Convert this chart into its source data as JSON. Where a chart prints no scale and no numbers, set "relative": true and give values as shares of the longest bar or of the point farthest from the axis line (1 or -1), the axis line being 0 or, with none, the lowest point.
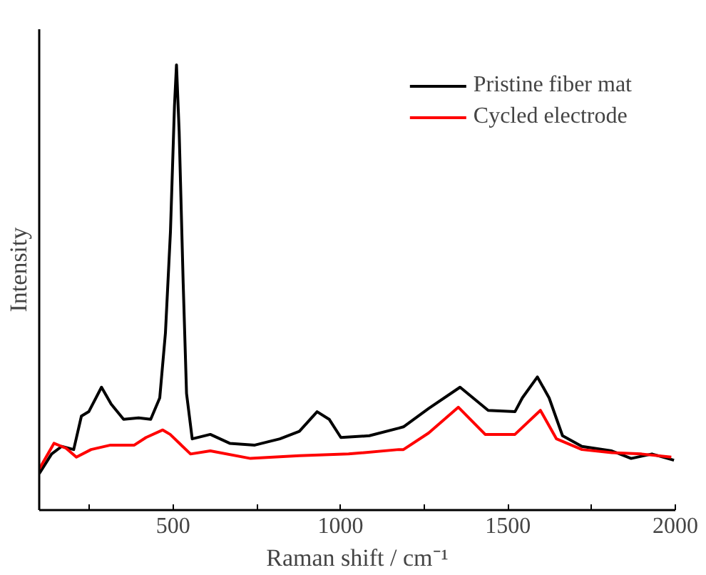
{
  "chart_data": {
    "type": "line",
    "relative": true,
    "xlabel": "Raman shift / cm⁻¹",
    "ylabel": "Intensity",
    "xlim": [
      100,
      2000
    ],
    "xticks": [
      {
        "value": 250,
        "label": null
      },
      500,
      {
        "value": 750,
        "label": null
      },
      1000,
      {
        "value": 1250,
        "label": null
      },
      1500,
      {
        "value": 1750,
        "label": null
      },
      2000
    ],
    "grid": false,
    "legend": "top right",
    "marker": "none",
    "line_style": "solid",
    "series": [
      {
        "name": "Pristine fiber mat",
        "color": "#000000",
        "x": [
          100,
          137,
          167,
          203,
          226,
          248,
          286,
          315,
          352,
          397,
          433,
          460,
          477,
          492,
          504,
          510,
          518,
          530,
          540,
          557,
          611,
          669,
          744,
          819,
          877,
          930,
          966,
          1001,
          1086,
          1174,
          1188,
          1263,
          1357,
          1441,
          1521,
          1543,
          1588,
          1623,
          1663,
          1721,
          1810,
          1868,
          1930,
          1996
        ],
        "values": [
          0.082,
          0.126,
          0.143,
          0.136,
          0.211,
          0.221,
          0.276,
          0.238,
          0.204,
          0.207,
          0.204,
          0.252,
          0.398,
          0.626,
          0.908,
          1.0,
          0.85,
          0.51,
          0.262,
          0.16,
          0.17,
          0.15,
          0.146,
          0.16,
          0.177,
          0.221,
          0.204,
          0.163,
          0.167,
          0.184,
          0.187,
          0.228,
          0.276,
          0.224,
          0.221,
          0.252,
          0.299,
          0.252,
          0.167,
          0.143,
          0.133,
          0.116,
          0.126,
          0.112
        ]
      },
      {
        "name": "Cycled electrode",
        "color": "#ff0000",
        "x": [
          100,
          144,
          180,
          211,
          255,
          313,
          384,
          419,
          469,
          491,
          552,
          611,
          731,
          877,
          1024,
          1174,
          1188,
          1263,
          1352,
          1432,
          1521,
          1597,
          1645,
          1721,
          1810,
          1899,
          1988
        ],
        "values": [
          0.092,
          0.15,
          0.139,
          0.119,
          0.136,
          0.146,
          0.146,
          0.163,
          0.18,
          0.17,
          0.126,
          0.133,
          0.116,
          0.122,
          0.126,
          0.136,
          0.136,
          0.173,
          0.231,
          0.17,
          0.17,
          0.224,
          0.16,
          0.136,
          0.129,
          0.126,
          0.119
        ]
      }
    ]
  }
}
